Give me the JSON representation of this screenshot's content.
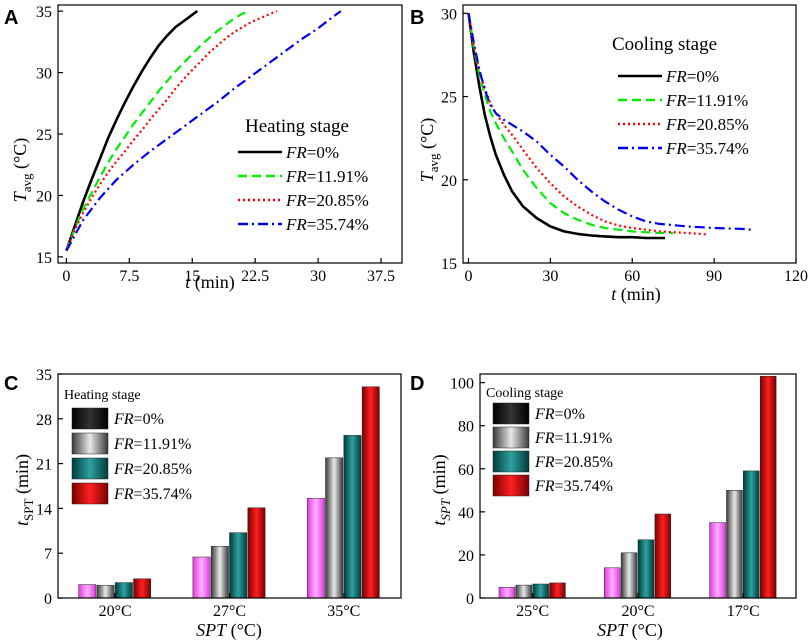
{
  "chart_data": [
    {
      "id": "A",
      "panel_label": "A",
      "type": "line",
      "legend_title": "Heating stage",
      "xlabel": "t (min)",
      "ylabel": "Tavg (°C)",
      "xlim": [
        -1,
        40
      ],
      "ylim": [
        14.5,
        35.5
      ],
      "xticks": [
        "0",
        "7.5",
        "15",
        "22.5",
        "30",
        "37.5"
      ],
      "yticks": [
        "15",
        "20",
        "25",
        "30",
        "35"
      ],
      "series": [
        {
          "name": "FR=0%",
          "fr_value": "0%",
          "color": "#000000",
          "dash": "solid",
          "x": [
            0,
            1,
            2,
            3,
            4,
            5,
            6,
            7,
            8,
            9,
            10,
            11,
            12,
            13,
            14,
            15,
            15.6
          ],
          "y": [
            15.5,
            17.5,
            19.5,
            21.3,
            23.0,
            24.7,
            26.2,
            27.6,
            28.9,
            30.1,
            31.2,
            32.2,
            33.0,
            33.7,
            34.2,
            34.7,
            35.0
          ]
        },
        {
          "name": "FR=11.91%",
          "fr_value": "11.91%",
          "color": "#00ee00",
          "dash": "long",
          "x": [
            0,
            1,
            2,
            3,
            4,
            5,
            6,
            7,
            8,
            9,
            10,
            11,
            12,
            13,
            14,
            15,
            16,
            17,
            18,
            19,
            20,
            21,
            21.9
          ],
          "y": [
            15.5,
            17.3,
            18.9,
            20.2,
            21.5,
            22.7,
            23.8,
            24.8,
            25.8,
            26.7,
            27.6,
            28.5,
            29.3,
            30.1,
            30.8,
            31.5,
            32.2,
            32.8,
            33.4,
            33.9,
            34.4,
            34.8,
            35.0
          ]
        },
        {
          "name": "FR=20.85%",
          "fr_value": "20.85%",
          "color": "#ff0000",
          "dash": "dot",
          "x": [
            0,
            1,
            2,
            3,
            4,
            5,
            6,
            7,
            8,
            9,
            10,
            11,
            12,
            13,
            14,
            15,
            16,
            17,
            18,
            19,
            20,
            21,
            22,
            23,
            24,
            25.1
          ],
          "y": [
            15.5,
            17.2,
            18.6,
            19.8,
            20.9,
            21.9,
            22.8,
            23.6,
            24.5,
            25.3,
            26.2,
            27.0,
            27.8,
            28.7,
            29.5,
            30.2,
            30.9,
            31.6,
            32.2,
            32.8,
            33.3,
            33.7,
            34.1,
            34.4,
            34.7,
            35.0
          ]
        },
        {
          "name": "FR=35.74%",
          "fr_value": "35.74%",
          "color": "#0000ee",
          "dash": "dashdot",
          "x": [
            0,
            2,
            4,
            6,
            8,
            10,
            12,
            14,
            16,
            18,
            20,
            22,
            24,
            26,
            28,
            30,
            31.5,
            32.7
          ],
          "y": [
            15.5,
            18.0,
            19.8,
            21.3,
            22.5,
            23.6,
            24.6,
            25.6,
            26.6,
            27.6,
            28.7,
            29.7,
            30.7,
            31.7,
            32.7,
            33.6,
            34.4,
            35.0
          ]
        }
      ]
    },
    {
      "id": "B",
      "panel_label": "B",
      "type": "line",
      "legend_title": "Cooling stage",
      "xlabel": "t (min)",
      "ylabel": "Tavg (°C)",
      "xlim": [
        -2,
        120
      ],
      "ylim": [
        15,
        30.5
      ],
      "xticks": [
        "0",
        "30",
        "60",
        "90",
        "120"
      ],
      "yticks": [
        "15",
        "20",
        "25",
        "30"
      ],
      "series": [
        {
          "name": "FR=0%",
          "fr_value": "0%",
          "color": "#000000",
          "dash": "solid",
          "x": [
            0,
            2,
            4,
            6,
            8,
            10,
            13,
            16,
            20,
            25,
            30,
            35,
            40,
            45,
            50,
            55,
            60,
            65,
            70,
            72
          ],
          "y": [
            30.0,
            27.6,
            25.6,
            23.9,
            22.6,
            21.5,
            20.3,
            19.3,
            18.4,
            17.7,
            17.2,
            16.9,
            16.75,
            16.65,
            16.6,
            16.55,
            16.55,
            16.5,
            16.5,
            16.5
          ]
        },
        {
          "name": "FR=11.91%",
          "fr_value": "11.91%",
          "color": "#00ee00",
          "dash": "long",
          "x": [
            0,
            2,
            4,
            6,
            8,
            10,
            13,
            16,
            20,
            25,
            30,
            35,
            40,
            45,
            50,
            55,
            60,
            65,
            70,
            75
          ],
          "y": [
            30.0,
            27.9,
            26.3,
            25.1,
            24.1,
            23.4,
            22.5,
            21.7,
            20.6,
            19.5,
            18.6,
            18.0,
            17.6,
            17.3,
            17.1,
            17.0,
            16.9,
            16.85,
            16.8,
            16.8
          ]
        },
        {
          "name": "FR=20.85%",
          "fr_value": "20.85%",
          "color": "#ff0000",
          "dash": "dot",
          "x": [
            0,
            2,
            4,
            6,
            8,
            10,
            13,
            16,
            20,
            25,
            30,
            35,
            40,
            45,
            50,
            55,
            60,
            65,
            70,
            75,
            80,
            85,
            88
          ],
          "y": [
            30.0,
            28.0,
            26.5,
            25.5,
            24.6,
            24.0,
            23.3,
            22.7,
            21.8,
            20.7,
            19.8,
            19.0,
            18.4,
            17.9,
            17.5,
            17.25,
            17.1,
            17.0,
            16.9,
            16.85,
            16.8,
            16.75,
            16.7
          ]
        },
        {
          "name": "FR=35.74%",
          "fr_value": "35.74%",
          "color": "#0000ee",
          "dash": "dashdot",
          "x": [
            0,
            2,
            4,
            6,
            8,
            10,
            13,
            16,
            20,
            25,
            30,
            35,
            40,
            45,
            50,
            55,
            60,
            65,
            70,
            80,
            90,
            100,
            104
          ],
          "y": [
            30.0,
            28.2,
            26.6,
            25.4,
            24.5,
            24.0,
            23.6,
            23.3,
            22.9,
            22.3,
            21.5,
            20.8,
            20.0,
            19.3,
            18.7,
            18.2,
            17.8,
            17.5,
            17.35,
            17.2,
            17.1,
            17.05,
            17.0
          ]
        }
      ]
    },
    {
      "id": "C",
      "panel_label": "C",
      "type": "bar",
      "legend_title": "Heating stage",
      "xlabel": "SPT (°C)",
      "ylabel": "tSPT (min)",
      "ylim": [
        0,
        35
      ],
      "yticks": [
        "0",
        "7",
        "14",
        "21",
        "28",
        "35"
      ],
      "categories": [
        "20°C",
        "27°C",
        "35°C"
      ],
      "series": [
        {
          "name": "FR=0%",
          "fr_value": "0%",
          "color": "#ff55ff",
          "values": [
            2.1,
            6.4,
            15.6
          ]
        },
        {
          "name": "FR=11.91%",
          "fr_value": "11.91%",
          "color": "#7a7a7a",
          "values": [
            2.0,
            8.1,
            21.9
          ]
        },
        {
          "name": "FR=20.85%",
          "fr_value": "20.85%",
          "color": "#008080",
          "values": [
            2.4,
            10.2,
            25.4
          ]
        },
        {
          "name": "FR=35.74%",
          "fr_value": "35.74%",
          "color": "#ff0000",
          "values": [
            3.0,
            14.1,
            33.0
          ]
        }
      ]
    },
    {
      "id": "D",
      "panel_label": "D",
      "type": "bar",
      "legend_title": "Cooling stage",
      "xlabel": "SPT (°C)",
      "ylabel": "tSPT (min)",
      "ylim": [
        0,
        104
      ],
      "yticks": [
        "0",
        "20",
        "40",
        "60",
        "80",
        "100"
      ],
      "categories": [
        "25°C",
        "20°C",
        "17°C"
      ],
      "series": [
        {
          "name": "FR=0%",
          "fr_value": "0%",
          "color": "#ff55ff",
          "values": [
            5,
            14,
            35
          ]
        },
        {
          "name": "FR=11.91%",
          "fr_value": "11.91%",
          "color": "#7a7a7a",
          "values": [
            6,
            21,
            50
          ]
        },
        {
          "name": "FR=20.85%",
          "fr_value": "20.85%",
          "color": "#008080",
          "values": [
            6.5,
            27,
            59
          ]
        },
        {
          "name": "FR=35.74%",
          "fr_value": "35.74%",
          "color": "#ff0000",
          "values": [
            7,
            39,
            103
          ]
        }
      ]
    }
  ]
}
